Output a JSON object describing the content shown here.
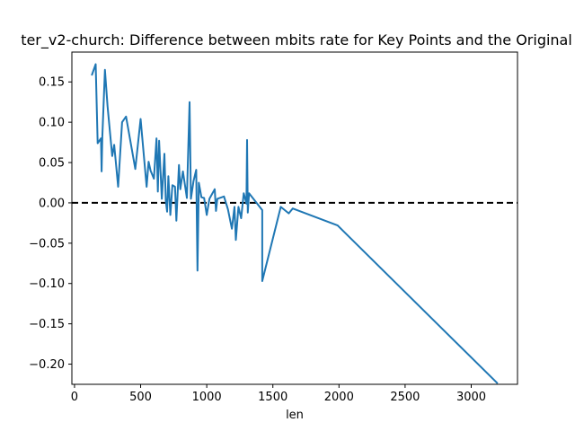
{
  "chart_data": {
    "type": "line",
    "title": "ter_v2-church: Difference between mbits rate for Key Points and the Original",
    "xlabel": "len",
    "ylabel": "",
    "xlim": [
      -20,
      3350
    ],
    "ylim": [
      -0.225,
      0.187
    ],
    "xticks": [
      0,
      500,
      1000,
      1500,
      2000,
      2500,
      3000
    ],
    "yticks": [
      -0.2,
      -0.15,
      -0.1,
      -0.05,
      0.0,
      0.05,
      0.1,
      0.15
    ],
    "xtick_labels": [
      "0",
      "500",
      "1000",
      "1500",
      "2000",
      "2500",
      "3000"
    ],
    "ytick_labels": [
      "−0.20",
      "−0.15",
      "−0.10",
      "−0.05",
      "0.00",
      "0.05",
      "0.10",
      "0.15"
    ],
    "reference_line": {
      "y": 0,
      "style": "dashed",
      "color": "#000000"
    },
    "grid": false,
    "series": [
      {
        "color": "#1f77b4",
        "points": [
          [
            130,
            0.158
          ],
          [
            160,
            0.172
          ],
          [
            175,
            0.074
          ],
          [
            200,
            0.08
          ],
          [
            205,
            0.039
          ],
          [
            210,
            0.082
          ],
          [
            230,
            0.165
          ],
          [
            250,
            0.12
          ],
          [
            285,
            0.058
          ],
          [
            300,
            0.072
          ],
          [
            330,
            0.02
          ],
          [
            360,
            0.1
          ],
          [
            390,
            0.107
          ],
          [
            460,
            0.042
          ],
          [
            500,
            0.104
          ],
          [
            545,
            0.02
          ],
          [
            560,
            0.051
          ],
          [
            575,
            0.04
          ],
          [
            600,
            0.03
          ],
          [
            620,
            0.08
          ],
          [
            630,
            0.014
          ],
          [
            640,
            0.077
          ],
          [
            660,
            0.005
          ],
          [
            680,
            0.061
          ],
          [
            690,
            0.003
          ],
          [
            700,
            -0.011
          ],
          [
            710,
            0.033
          ],
          [
            725,
            -0.015
          ],
          [
            740,
            0.022
          ],
          [
            760,
            0.02
          ],
          [
            770,
            -0.022
          ],
          [
            790,
            0.047
          ],
          [
            800,
            0.017
          ],
          [
            820,
            0.039
          ],
          [
            850,
            0.006
          ],
          [
            870,
            0.125
          ],
          [
            880,
            0.005
          ],
          [
            900,
            0.027
          ],
          [
            920,
            0.041
          ],
          [
            930,
            -0.084
          ],
          [
            940,
            0.025
          ],
          [
            960,
            0.007
          ],
          [
            980,
            0.006
          ],
          [
            1000,
            -0.015
          ],
          [
            1020,
            0.005
          ],
          [
            1060,
            0.017
          ],
          [
            1070,
            -0.01
          ],
          [
            1080,
            0.005
          ],
          [
            1130,
            0.008
          ],
          [
            1160,
            -0.008
          ],
          [
            1190,
            -0.032
          ],
          [
            1210,
            -0.005
          ],
          [
            1220,
            -0.046
          ],
          [
            1240,
            -0.005
          ],
          [
            1260,
            -0.019
          ],
          [
            1280,
            0.012
          ],
          [
            1300,
            -0.001
          ],
          [
            1305,
            0.078
          ],
          [
            1310,
            -0.012
          ],
          [
            1320,
            0.012
          ],
          [
            1420,
            -0.009
          ],
          [
            1420,
            -0.097
          ],
          [
            1560,
            -0.005
          ],
          [
            1620,
            -0.013
          ],
          [
            1650,
            -0.007
          ],
          [
            1990,
            -0.028
          ],
          [
            3200,
            -0.224
          ]
        ]
      }
    ]
  }
}
